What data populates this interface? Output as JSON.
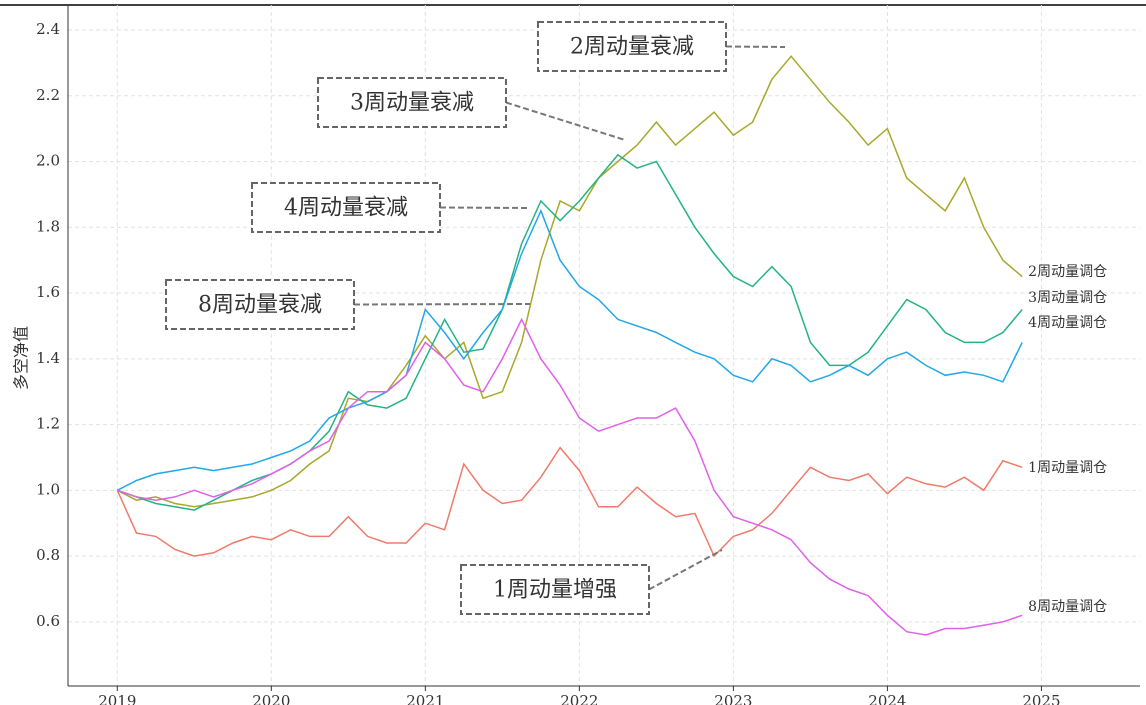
{
  "chart_data": {
    "type": "line",
    "y_label": "多空净值",
    "x": [
      2019,
      2019.125,
      2019.25,
      2019.375,
      2019.5,
      2019.625,
      2019.75,
      2019.875,
      2020,
      2020.125,
      2020.25,
      2020.375,
      2020.5,
      2020.625,
      2020.75,
      2020.875,
      2021,
      2021.125,
      2021.25,
      2021.375,
      2021.5,
      2021.625,
      2021.75,
      2021.875,
      2022,
      2022.125,
      2022.25,
      2022.375,
      2022.5,
      2022.625,
      2022.75,
      2022.875,
      2023,
      2023.125,
      2023.25,
      2023.375,
      2023.5,
      2023.625,
      2023.75,
      2023.875,
      2024,
      2024.125,
      2024.25,
      2024.375,
      2024.5,
      2024.625,
      2024.75,
      2024.875
    ],
    "series": [
      {
        "name": "1周动量调仓",
        "color": "#f07a6a",
        "values": [
          1.0,
          0.87,
          0.86,
          0.82,
          0.8,
          0.81,
          0.84,
          0.86,
          0.85,
          0.88,
          0.86,
          0.86,
          0.92,
          0.86,
          0.84,
          0.84,
          0.9,
          0.88,
          1.08,
          1.0,
          0.96,
          0.97,
          1.04,
          1.13,
          1.06,
          0.95,
          0.95,
          1.01,
          0.96,
          0.92,
          0.93,
          0.8,
          0.86,
          0.88,
          0.93,
          1.0,
          1.07,
          1.04,
          1.03,
          1.05,
          0.99,
          1.04,
          1.02,
          1.01,
          1.04,
          1.0,
          1.09,
          1.07
        ]
      },
      {
        "name": "2周动量调仓",
        "color": "#a8a82a",
        "values": [
          1.0,
          0.97,
          0.98,
          0.96,
          0.95,
          0.96,
          0.97,
          0.98,
          1.0,
          1.03,
          1.08,
          1.12,
          1.28,
          1.27,
          1.3,
          1.38,
          1.47,
          1.4,
          1.45,
          1.28,
          1.3,
          1.45,
          1.7,
          1.88,
          1.85,
          1.95,
          2.0,
          2.05,
          2.12,
          2.05,
          2.1,
          2.15,
          2.08,
          2.12,
          2.25,
          2.32,
          2.25,
          2.18,
          2.12,
          2.05,
          2.1,
          1.95,
          1.9,
          1.85,
          1.95,
          1.8,
          1.7,
          1.65
        ]
      },
      {
        "name": "3周动量调仓",
        "color": "#22b482",
        "values": [
          1.0,
          0.98,
          0.96,
          0.95,
          0.94,
          0.97,
          1.0,
          1.03,
          1.05,
          1.08,
          1.12,
          1.18,
          1.3,
          1.26,
          1.25,
          1.28,
          1.4,
          1.52,
          1.42,
          1.43,
          1.55,
          1.75,
          1.88,
          1.82,
          1.88,
          1.95,
          2.02,
          1.98,
          2.0,
          1.9,
          1.8,
          1.72,
          1.65,
          1.62,
          1.68,
          1.62,
          1.45,
          1.38,
          1.38,
          1.42,
          1.5,
          1.58,
          1.55,
          1.48,
          1.45,
          1.45,
          1.48,
          1.55
        ]
      },
      {
        "name": "4周动量调仓",
        "color": "#22a8e6",
        "values": [
          1.0,
          1.03,
          1.05,
          1.06,
          1.07,
          1.06,
          1.07,
          1.08,
          1.1,
          1.12,
          1.15,
          1.22,
          1.25,
          1.27,
          1.3,
          1.35,
          1.55,
          1.48,
          1.4,
          1.48,
          1.55,
          1.72,
          1.85,
          1.7,
          1.62,
          1.58,
          1.52,
          1.5,
          1.48,
          1.45,
          1.42,
          1.4,
          1.35,
          1.33,
          1.4,
          1.38,
          1.33,
          1.35,
          1.38,
          1.35,
          1.4,
          1.42,
          1.38,
          1.35,
          1.36,
          1.35,
          1.33,
          1.45
        ]
      },
      {
        "name": "8周动量调仓",
        "color": "#e060ea",
        "values": [
          1.0,
          0.98,
          0.97,
          0.98,
          1.0,
          0.98,
          1.0,
          1.02,
          1.05,
          1.08,
          1.12,
          1.15,
          1.25,
          1.3,
          1.3,
          1.35,
          1.45,
          1.4,
          1.32,
          1.3,
          1.4,
          1.52,
          1.4,
          1.32,
          1.22,
          1.18,
          1.2,
          1.22,
          1.22,
          1.25,
          1.15,
          1.0,
          0.92,
          0.9,
          0.88,
          0.85,
          0.78,
          0.73,
          0.7,
          0.68,
          0.62,
          0.57,
          0.56,
          0.58,
          0.58,
          0.59,
          0.6,
          0.62
        ]
      }
    ],
    "annotations": [
      {
        "text": "2周动量衰减",
        "color": "#22b060"
      },
      {
        "text": "3周动量衰减",
        "color": "#22b060"
      },
      {
        "text": "4周动量衰减",
        "color": "#22b060"
      },
      {
        "text": "8周动量衰减",
        "color": "#22b060"
      },
      {
        "text": "1周动量增强",
        "color": "#c00000"
      }
    ],
    "xlim": [
      2018.68,
      2025.64
    ],
    "xticks": [
      2019,
      2020,
      2021,
      2022,
      2023,
      2024,
      2025
    ],
    "ylim": [
      0.405,
      2.476
    ],
    "yticks": [
      {
        "value": 0.6,
        "label": "0.6"
      },
      {
        "value": 0.8,
        "label": "0.8"
      },
      {
        "value": 1.0,
        "label": "1.0"
      },
      {
        "value": 1.2,
        "label": "1.2"
      },
      {
        "value": 1.4,
        "label": "1.4"
      },
      {
        "value": 1.6,
        "label": "1.6"
      },
      {
        "value": 1.8,
        "label": "1.8"
      },
      {
        "value": 2.0,
        "label": "2.0"
      },
      {
        "value": 2.2,
        "label": "2.2"
      },
      {
        "value": 2.4,
        "label": "2.4"
      }
    ],
    "grid": true
  }
}
